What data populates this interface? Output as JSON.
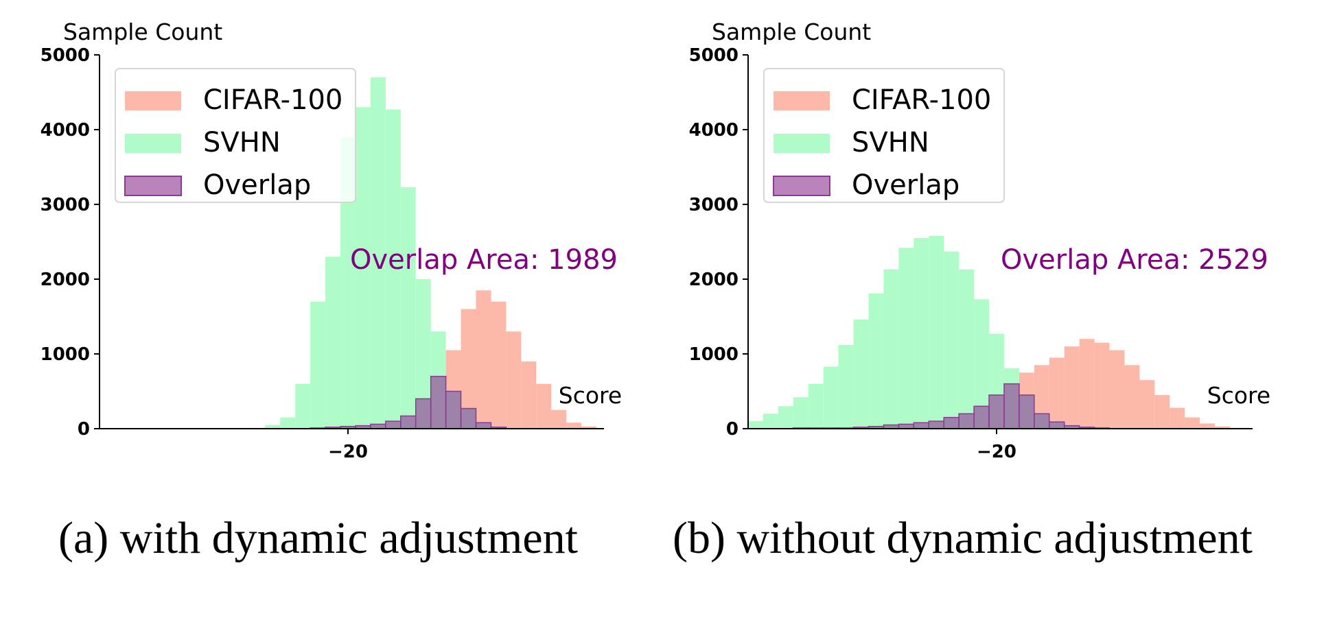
{
  "colors": {
    "cifar": "#fcb8a8",
    "svhn": "#b0fcc8",
    "overlap": "#944098",
    "overlap_edge": "#8a3a8f",
    "annotation": "#800080"
  },
  "captions": [
    "(a) with dynamic adjustment",
    "(b) without dynamic adjustment"
  ],
  "chart_data": [
    {
      "type": "bar",
      "subtype": "overlapping-histogram",
      "ylabel": "Sample Count",
      "xlabel": "Score",
      "ylim": [
        0,
        5000
      ],
      "yticks": [
        0,
        1000,
        2000,
        3000,
        4000,
        5000
      ],
      "xticks": [
        -20
      ],
      "xlim": [
        -36.5,
        -3
      ],
      "bin_width": 1,
      "legend": {
        "placement": "upper-left",
        "entries": [
          "CIFAR-100",
          "SVHN",
          "Overlap"
        ]
      },
      "annotation": "Overlap Area: 1989",
      "series": [
        {
          "name": "CIFAR-100",
          "bin_start": -25.5,
          "values": [
            0,
            0,
            0,
            10,
            20,
            30,
            40,
            60,
            100,
            170,
            400,
            700,
            1050,
            1600,
            1850,
            1700,
            1300,
            900,
            600,
            250,
            80,
            30,
            0
          ]
        },
        {
          "name": "SVHN",
          "bin_start": -25.5,
          "values": [
            50,
            150,
            600,
            1700,
            2300,
            3900,
            4300,
            4700,
            4270,
            3230,
            2000,
            1300,
            500,
            270,
            80,
            20,
            0,
            0,
            0,
            0,
            0,
            0,
            0
          ]
        }
      ]
    },
    {
      "type": "bar",
      "subtype": "overlapping-histogram",
      "ylabel": "Sample Count",
      "xlabel": "Score",
      "ylim": [
        0,
        5000
      ],
      "yticks": [
        0,
        1000,
        2000,
        3000,
        4000,
        5000
      ],
      "xticks": [
        -20
      ],
      "xlim": [
        -36.5,
        -3
      ],
      "bin_width": 1,
      "legend": {
        "placement": "upper-left",
        "entries": [
          "CIFAR-100",
          "SVHN",
          "Overlap"
        ]
      },
      "annotation": "Overlap Area: 2529",
      "series": [
        {
          "name": "CIFAR-100",
          "bin_start": -36.5,
          "values": [
            0,
            0,
            0,
            10,
            10,
            10,
            10,
            20,
            30,
            50,
            60,
            80,
            100,
            150,
            200,
            300,
            450,
            600,
            750,
            850,
            950,
            1100,
            1200,
            1150,
            1050,
            850,
            650,
            450,
            280,
            150,
            70,
            30,
            10,
            0
          ]
        },
        {
          "name": "SVHN",
          "bin_start": -36.5,
          "values": [
            100,
            200,
            300,
            420,
            600,
            830,
            1120,
            1460,
            1810,
            2130,
            2420,
            2550,
            2580,
            2370,
            2130,
            1730,
            1270,
            810,
            450,
            200,
            90,
            40,
            20,
            10,
            0,
            0,
            0,
            0,
            0,
            0,
            0,
            0,
            0,
            0
          ]
        }
      ]
    }
  ]
}
